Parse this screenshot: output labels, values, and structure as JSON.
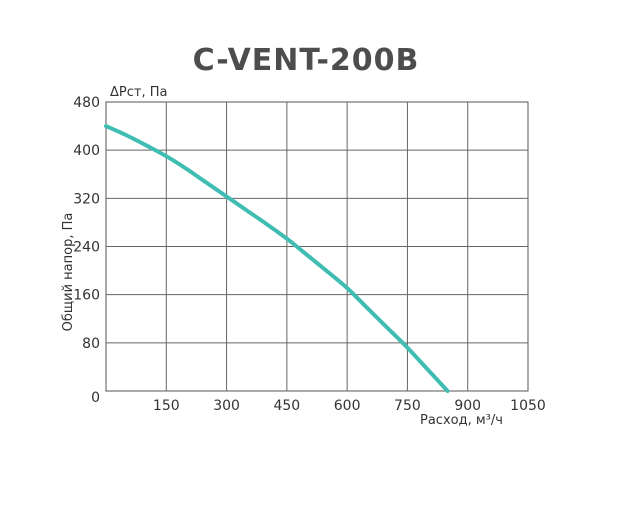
{
  "chart_data": {
    "type": "line",
    "title": "C-VENT-200B",
    "ylabel": "Общий напор, Па",
    "ylabel_top": "ΔPст, Па",
    "xlabel": "Расход, м³/ч",
    "xlim": [
      0,
      1050
    ],
    "ylim": [
      0,
      480
    ],
    "x_ticks": [
      150,
      300,
      450,
      600,
      750,
      900,
      1050
    ],
    "y_ticks": [
      0,
      80,
      160,
      240,
      320,
      400,
      480
    ],
    "origin_label": "0",
    "grid": true,
    "series": [
      {
        "color": "#3fbdb3",
        "x": [
          0,
          50,
          100,
          150,
          200,
          250,
          300,
          350,
          400,
          450,
          500,
          550,
          600,
          650,
          700,
          750,
          800,
          850
        ],
        "y": [
          440,
          425,
          408,
          390,
          369,
          346,
          323,
          300,
          277,
          253,
          226,
          199,
          171,
          138,
          105,
          72,
          36,
          0
        ]
      }
    ]
  }
}
